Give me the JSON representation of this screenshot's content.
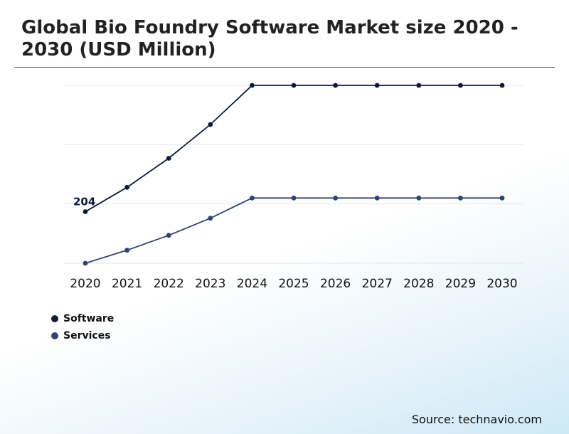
{
  "title": "Global Bio Foundry Software Market size 2020 - 2030 (USD Million)",
  "source": "Source: technavio.com",
  "colors": {
    "software": "#0d1a3c",
    "services": "#2e4470",
    "grid": "#e2e6ea"
  },
  "chart_data": {
    "type": "line",
    "title": "Global Bio Foundry Software Market size 2020 - 2030 (USD Million)",
    "categories": [
      "2020",
      "2021",
      "2022",
      "2023",
      "2024",
      "2025",
      "2026",
      "2027",
      "2028",
      "2029",
      "2030"
    ],
    "series": [
      {
        "name": "Software",
        "values": [
          204,
          245,
          294,
          351,
          417,
          417,
          417,
          417,
          417,
          417,
          417
        ]
      },
      {
        "name": "Services",
        "values": [
          117,
          139,
          164,
          193,
          227,
          227,
          227,
          227,
          227,
          227,
          227
        ]
      }
    ],
    "data_labels": [
      {
        "series": "Software",
        "category": "2020",
        "text": "204"
      }
    ],
    "ylim": [
      117,
      417
    ],
    "grid": true,
    "legend": "bottom-left"
  }
}
